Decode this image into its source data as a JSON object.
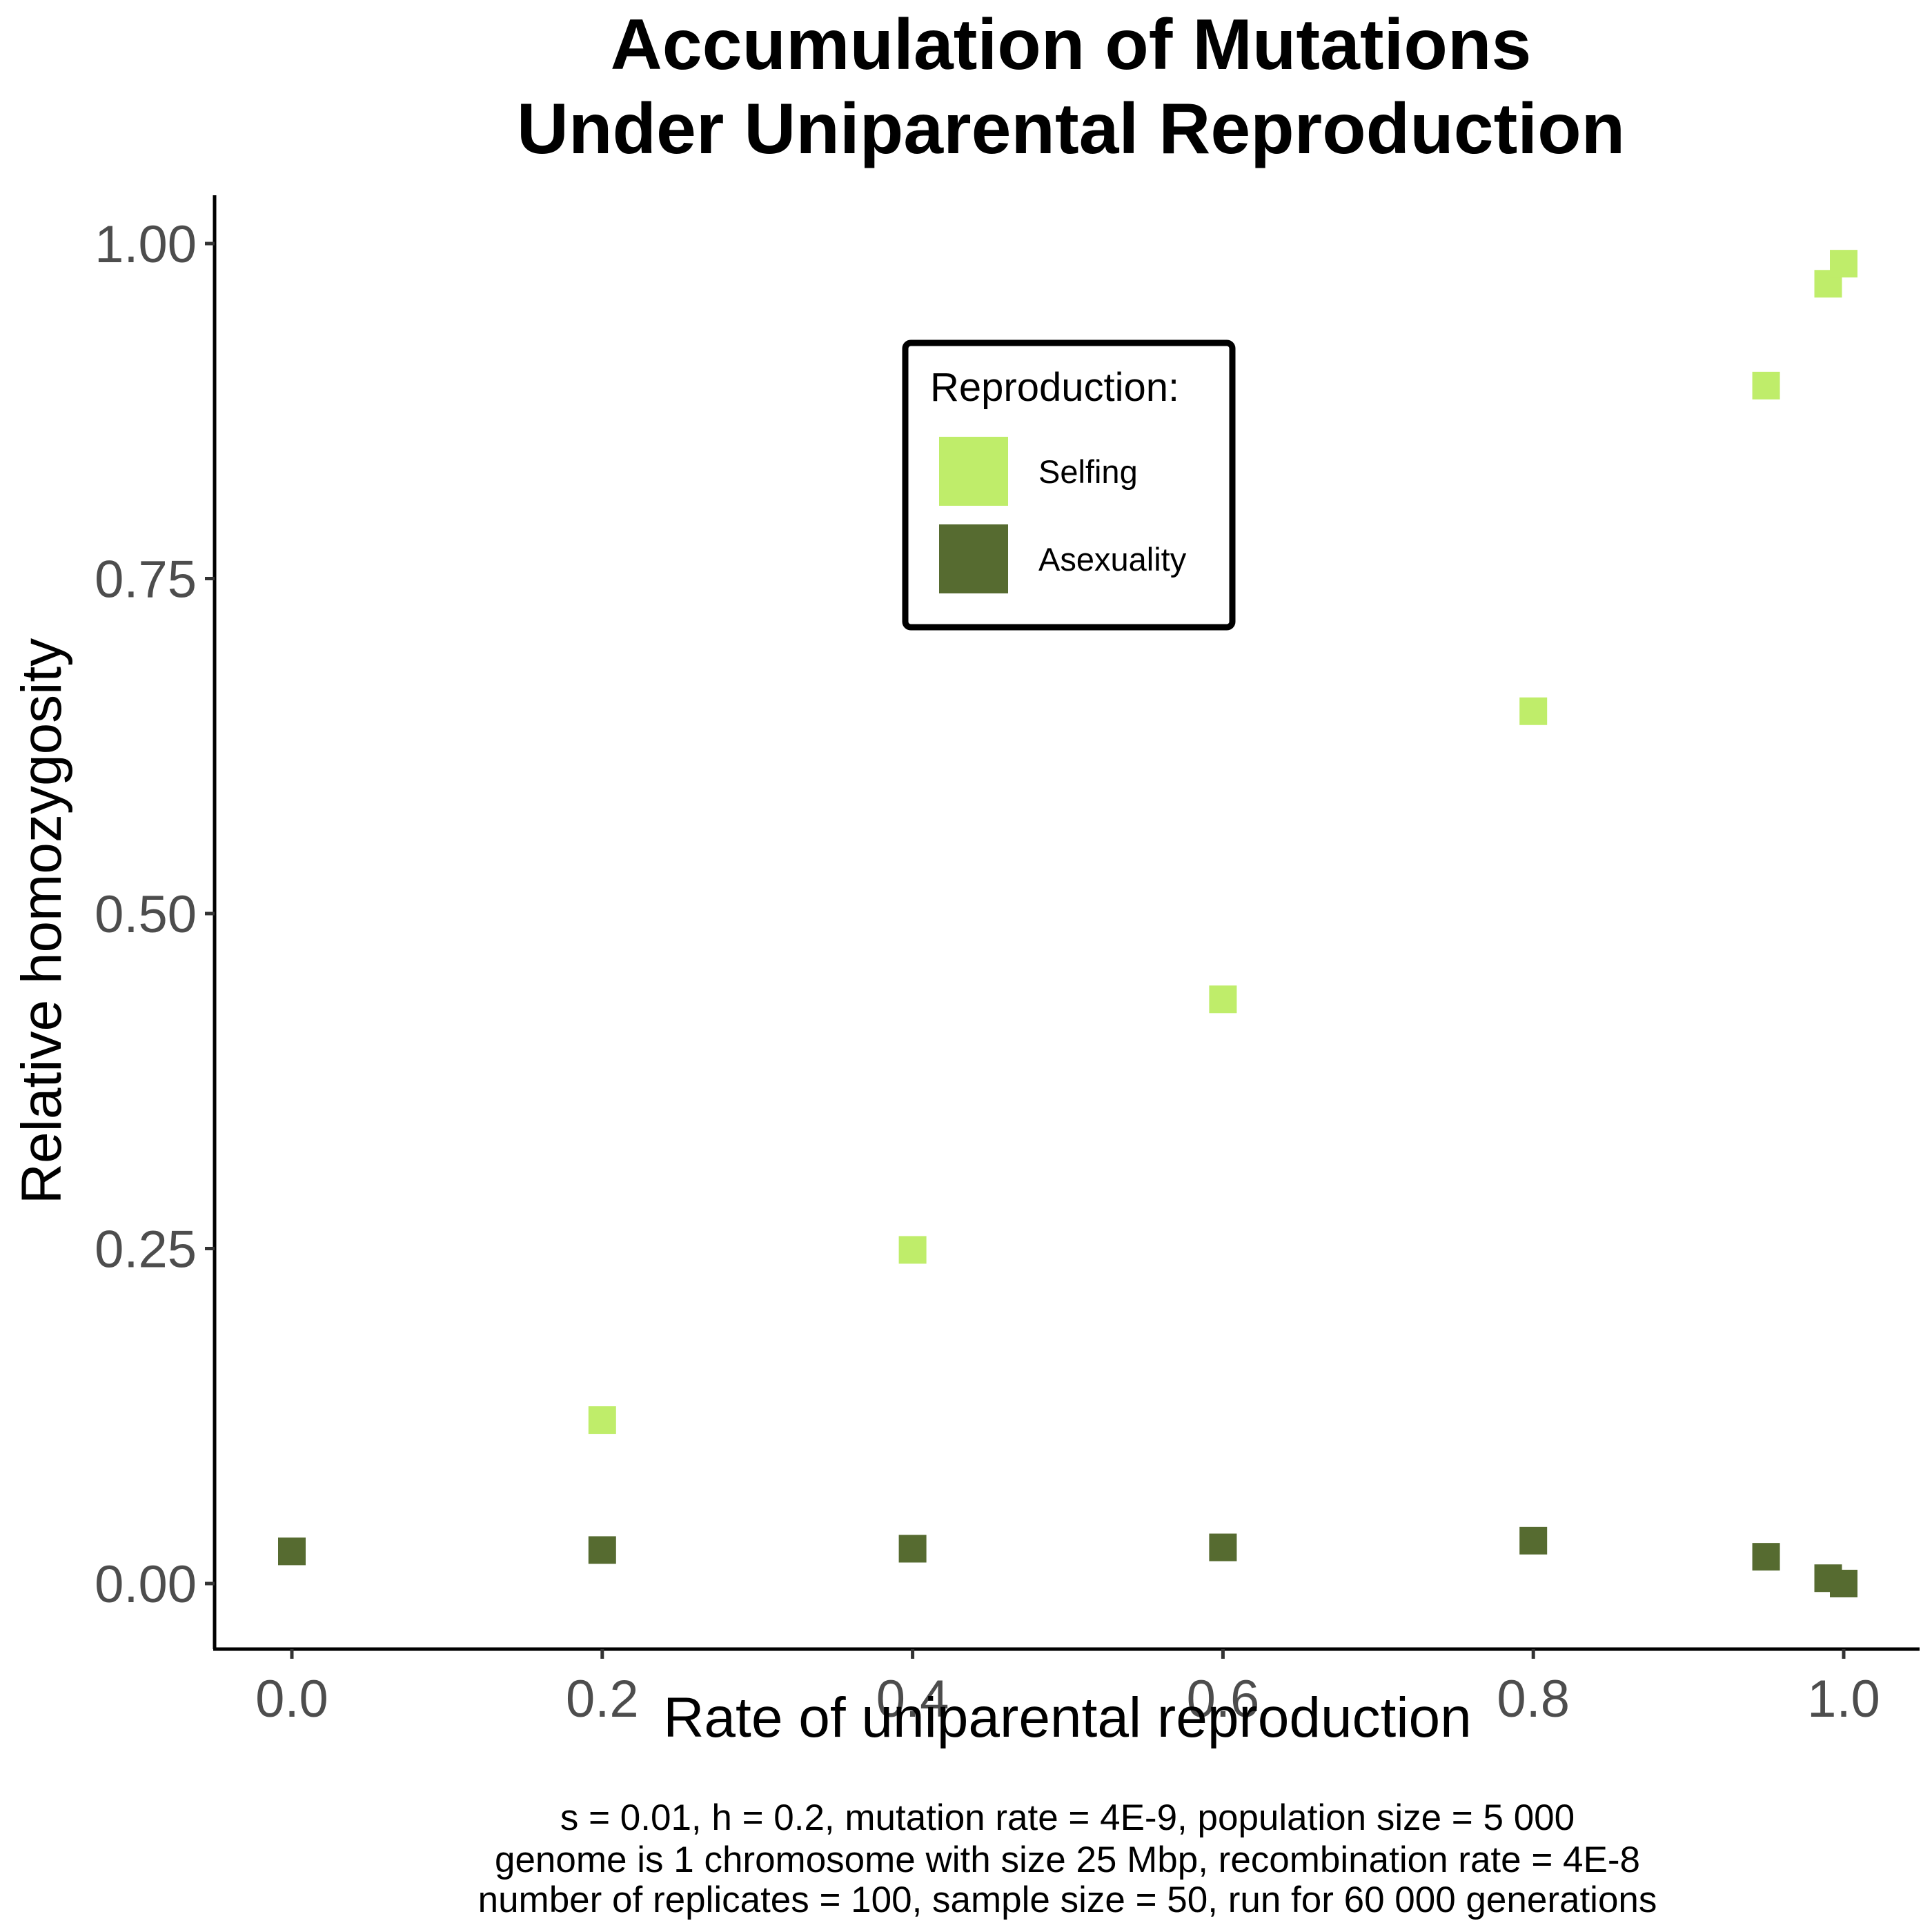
{
  "chart_data": {
    "type": "scatter",
    "title": [
      "Accumulation of Mutations",
      "Under Uniparental Reproduction"
    ],
    "xlabel": "Rate of uniparental reproduction",
    "ylabel": "Relative homozygosity",
    "xlim": [
      -0.05,
      1.05
    ],
    "ylim": [
      -0.05,
      1.035
    ],
    "x_ticks": [
      0.0,
      0.2,
      0.4,
      0.6,
      0.8,
      1.0
    ],
    "x_tick_labels": [
      "0.0",
      "0.2",
      "0.4",
      "0.6",
      "0.8",
      "1.0"
    ],
    "y_ticks": [
      0.0,
      0.25,
      0.5,
      0.75,
      1.0
    ],
    "y_tick_labels": [
      "0.00",
      "0.25",
      "0.50",
      "0.75",
      "1.00"
    ],
    "grid": false,
    "legend": {
      "title": "Reproduction:",
      "position": "top-center",
      "entries": [
        "Selfing",
        "Asexuality"
      ]
    },
    "series": [
      {
        "name": "Selfing",
        "color": "#bfed6a",
        "x": [
          0.2,
          0.4,
          0.6,
          0.8,
          0.95,
          0.99,
          1.0
        ],
        "y": [
          0.122,
          0.249,
          0.436,
          0.651,
          0.894,
          0.97,
          0.985
        ]
      },
      {
        "name": "Asexuality",
        "color": "#566b30",
        "x": [
          0.0,
          0.2,
          0.4,
          0.6,
          0.8,
          0.95,
          0.99,
          1.0
        ],
        "y": [
          0.024,
          0.025,
          0.026,
          0.027,
          0.032,
          0.02,
          0.004,
          0.0
        ]
      }
    ],
    "caption": [
      "s = 0.01, h = 0.2, mutation rate = 4E-9, population size = 5 000",
      "genome is 1 chromosome with size 25 Mbp, recombination rate = 4E-8",
      "number of replicates = 100, sample size = 50, run for 60 000 generations"
    ]
  }
}
